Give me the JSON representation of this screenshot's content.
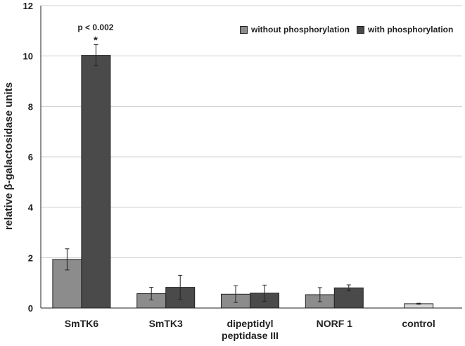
{
  "chart_data": {
    "type": "bar",
    "ylabel": "relative β-galactosidase units",
    "ylim": [
      0,
      12
    ],
    "yticks": [
      "0",
      "2",
      "4",
      "6",
      "8",
      "10",
      "12"
    ],
    "categories": [
      "SmTK6",
      "SmTK3",
      "dipeptidyl peptidase III",
      "NORF 1",
      "control"
    ],
    "category_labels": [
      [
        "SmTK6"
      ],
      [
        "SmTK3"
      ],
      [
        "dipeptidyl",
        "peptidase III"
      ],
      [
        "NORF 1"
      ],
      [
        "control"
      ]
    ],
    "series": [
      {
        "name": "without phosphorylation",
        "color": "#8c8c8c",
        "values": [
          1.93,
          0.57,
          0.55,
          0.53,
          0.17
        ],
        "errors": [
          0.42,
          0.25,
          0.33,
          0.28,
          0.02
        ]
      },
      {
        "name": "with phosphorylation",
        "color": "#4a4a4a",
        "values": [
          10.03,
          0.82,
          0.59,
          0.8,
          null
        ],
        "errors": [
          0.42,
          0.48,
          0.32,
          0.12,
          null
        ]
      }
    ],
    "control_color": "#d9d9d9",
    "annotation": {
      "label": "p < 0.002",
      "marker": "*",
      "category": "SmTK6"
    },
    "grid": true,
    "legend_position": "top-right"
  }
}
